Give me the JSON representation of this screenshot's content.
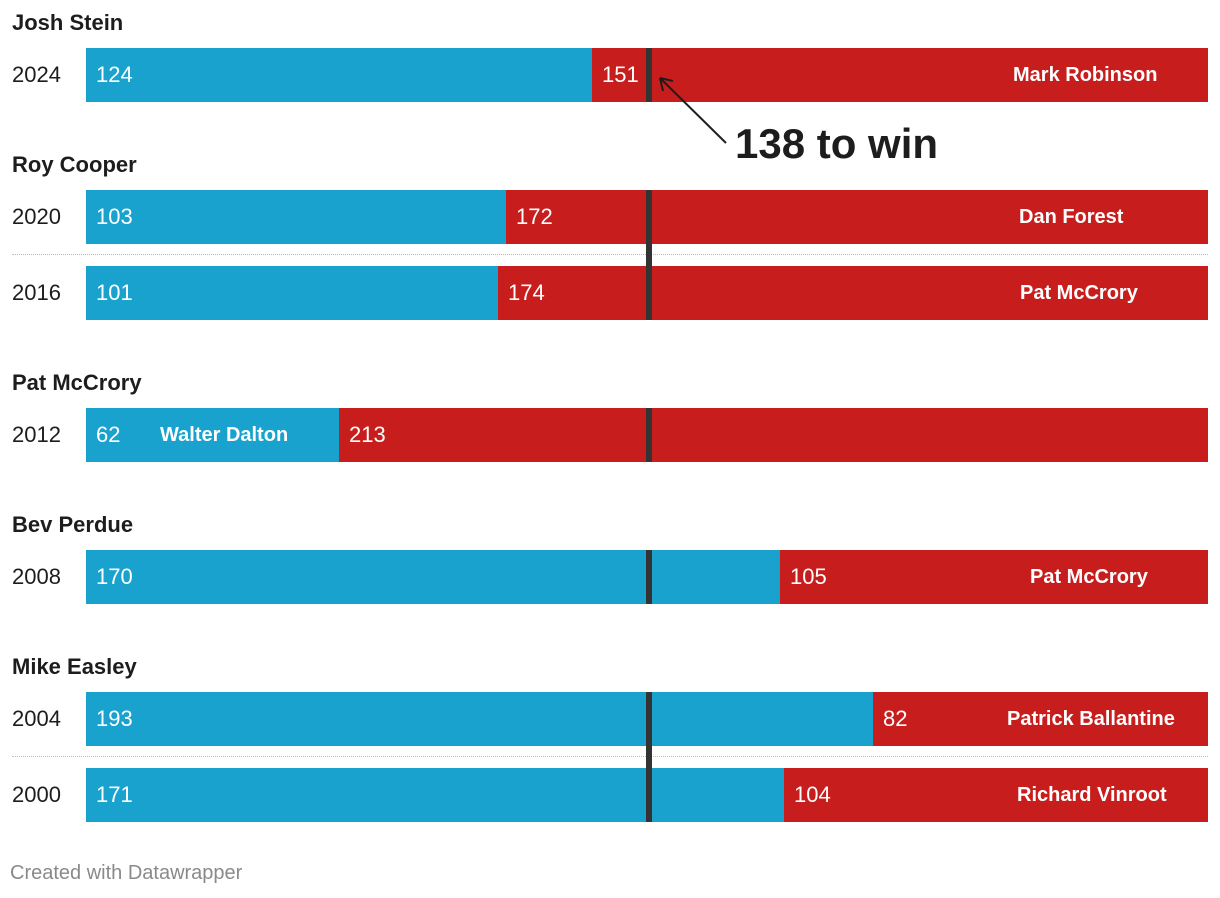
{
  "chart_data": {
    "type": "bar",
    "stacked": true,
    "orientation": "horizontal",
    "total": 275,
    "threshold": 138,
    "annotation": "138 to win",
    "colors": {
      "dem": "#1aa2cf",
      "rep": "#c71e1d",
      "threshold_line": "#333333"
    },
    "groups": [
      {
        "winner": "Josh Stein",
        "rows": [
          {
            "year": "2024",
            "dem": 124,
            "rep": 151,
            "opponent": "Mark Robinson",
            "dem_label": ""
          }
        ]
      },
      {
        "winner": "Roy Cooper",
        "rows": [
          {
            "year": "2020",
            "dem": 103,
            "rep": 172,
            "opponent": "Dan Forest",
            "dem_label": ""
          },
          {
            "year": "2016",
            "dem": 101,
            "rep": 174,
            "opponent": "Pat McCrory",
            "dem_label": ""
          }
        ]
      },
      {
        "winner": "Pat McCrory",
        "rows": [
          {
            "year": "2012",
            "dem": 62,
            "rep": 213,
            "opponent": "",
            "dem_label": "Walter Dalton"
          }
        ]
      },
      {
        "winner": "Bev Perdue",
        "rows": [
          {
            "year": "2008",
            "dem": 170,
            "rep": 105,
            "opponent": "Pat McCrory",
            "dem_label": ""
          }
        ]
      },
      {
        "winner": "Mike Easley",
        "rows": [
          {
            "year": "2004",
            "dem": 193,
            "rep": 82,
            "opponent": "Patrick Ballantine",
            "dem_label": ""
          },
          {
            "year": "2000",
            "dem": 171,
            "rep": 104,
            "opponent": "Richard Vinroot",
            "dem_label": ""
          }
        ]
      }
    ]
  },
  "footer": "Created with Datawrapper"
}
